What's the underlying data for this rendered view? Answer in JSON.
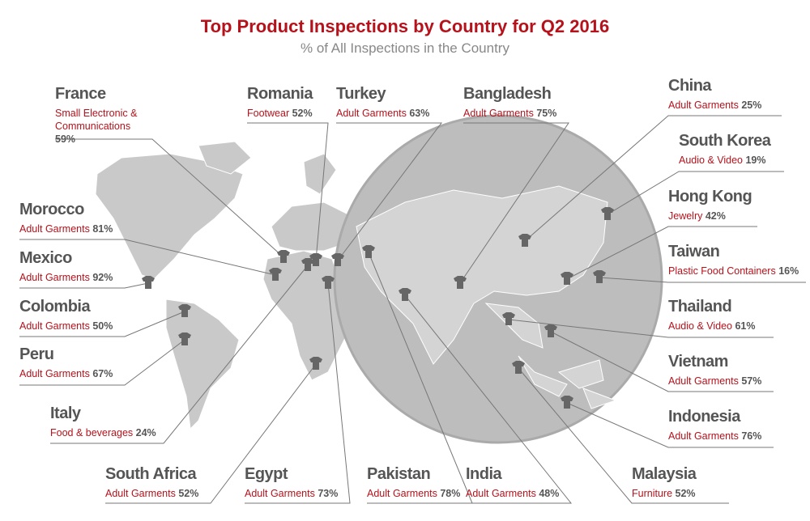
{
  "header": {
    "title": "Top Product Inspections by Country for Q2 2016",
    "subtitle": "% of All Inspections in the Country"
  },
  "countries": [
    {
      "name": "France",
      "category": "Small Electronic & Communications",
      "share": "59%"
    },
    {
      "name": "Romania",
      "category": "Footwear",
      "share": "52%"
    },
    {
      "name": "Turkey",
      "category": "Adult Garments",
      "share": "63%"
    },
    {
      "name": "Bangladesh",
      "category": "Adult Garments",
      "share": "75%"
    },
    {
      "name": "China",
      "category": "Adult Garments",
      "share": "25%"
    },
    {
      "name": "South Korea",
      "category": "Audio & Video",
      "share": "19%"
    },
    {
      "name": "Hong Kong",
      "category": "Jewelry",
      "share": "42%"
    },
    {
      "name": "Taiwan",
      "category": "Plastic Food Containers",
      "share": "16%"
    },
    {
      "name": "Thailand",
      "category": "Audio & Video",
      "share": "61%"
    },
    {
      "name": "Vietnam",
      "category": "Adult Garments",
      "share": "57%"
    },
    {
      "name": "Indonesia",
      "category": "Adult Garments",
      "share": "76%"
    },
    {
      "name": "Malaysia",
      "category": "Furniture",
      "share": "52%"
    },
    {
      "name": "India",
      "category": "Adult Garments",
      "share": "48%"
    },
    {
      "name": "Pakistan",
      "category": "Adult Garments",
      "share": "78%"
    },
    {
      "name": "Egypt",
      "category": "Adult Garments",
      "share": "73%"
    },
    {
      "name": "South Africa",
      "category": "Adult Garments",
      "share": "52%"
    },
    {
      "name": "Italy",
      "category": "Food & beverages",
      "share": "24%"
    },
    {
      "name": "Peru",
      "category": "Adult Garments",
      "share": "67%"
    },
    {
      "name": "Colombia",
      "category": "Adult Garments",
      "share": "50%"
    },
    {
      "name": "Mexico",
      "category": "Adult Garments",
      "share": "92%"
    },
    {
      "name": "Morocco",
      "category": "Adult Garments",
      "share": "81%"
    }
  ]
}
